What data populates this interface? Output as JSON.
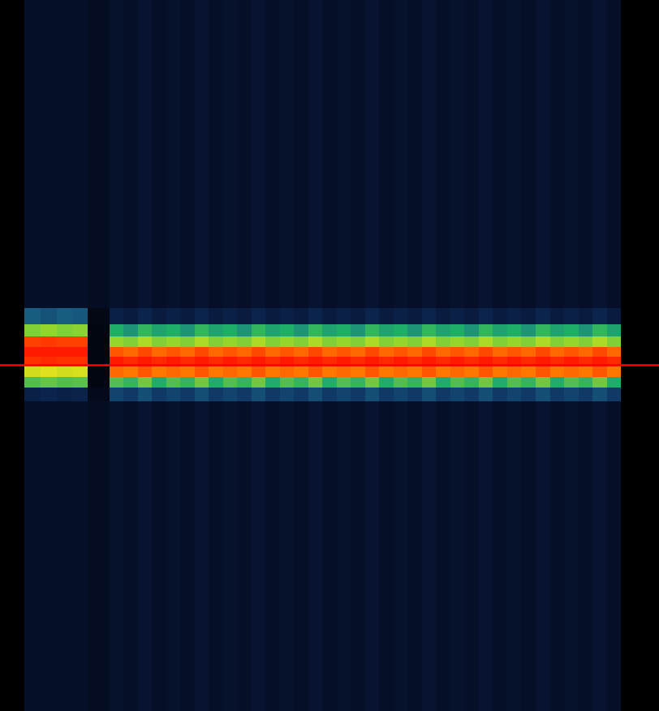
{
  "chart_data": {
    "type": "heatmap",
    "tick_labels": false,
    "xlim": [
      0,
      100
    ],
    "ylim": [
      0,
      100
    ],
    "zlim": [
      0,
      1
    ],
    "marker_line": 48.7,
    "time_bins": [
      3.7,
      6.2,
      8.6,
      11.0,
      13.3,
      16.6,
      18.76,
      20.91,
      23.07,
      25.22,
      27.38,
      29.54,
      31.69,
      33.85,
      36.0,
      38.16,
      40.32,
      42.47,
      44.63,
      46.78,
      48.94,
      51.1,
      53.25,
      55.41,
      57.56,
      59.72,
      61.88,
      64.03,
      66.19,
      68.34,
      70.5,
      72.66,
      74.81,
      76.97,
      79.12,
      81.28,
      83.44,
      85.59,
      87.75,
      89.9,
      92.06,
      94.2
    ],
    "freq_bins": [
      0,
      43.6,
      45.5,
      47.0,
      48.5,
      49.8,
      51.2,
      52.7,
      54.4,
      56.7,
      100
    ],
    "cells": [
      [
        0.12,
        0.2,
        0.55,
        0.7,
        0.97,
        1.0,
        0.95,
        0.6,
        0.35,
        0.12
      ],
      [
        0.12,
        0.22,
        0.57,
        0.72,
        0.98,
        1.0,
        0.96,
        0.62,
        0.33,
        0.12
      ],
      [
        0.12,
        0.2,
        0.55,
        0.7,
        0.97,
        1.0,
        0.95,
        0.6,
        0.35,
        0.12
      ],
      [
        0.12,
        0.21,
        0.56,
        0.71,
        0.97,
        1.0,
        0.95,
        0.61,
        0.34,
        0.12
      ],
      [
        0.1,
        0.08,
        0.05,
        0.05,
        0.05,
        0.05,
        0.05,
        0.05,
        0.06,
        0.1
      ],
      [
        0.13,
        0.3,
        0.55,
        0.9,
        1.0,
        0.92,
        0.62,
        0.5,
        0.2,
        0.13
      ],
      [
        0.12,
        0.28,
        0.52,
        0.88,
        0.98,
        0.9,
        0.6,
        0.45,
        0.18,
        0.12
      ],
      [
        0.14,
        0.32,
        0.58,
        0.92,
        1.0,
        0.94,
        0.65,
        0.52,
        0.22,
        0.14
      ],
      [
        0.12,
        0.28,
        0.5,
        0.88,
        0.98,
        0.9,
        0.6,
        0.48,
        0.18,
        0.12
      ],
      [
        0.13,
        0.3,
        0.55,
        0.9,
        1.0,
        0.92,
        0.62,
        0.5,
        0.2,
        0.13
      ],
      [
        0.12,
        0.28,
        0.52,
        0.88,
        0.98,
        0.9,
        0.6,
        0.45,
        0.18,
        0.12
      ],
      [
        0.14,
        0.32,
        0.58,
        0.92,
        1.0,
        0.94,
        0.65,
        0.52,
        0.22,
        0.14
      ],
      [
        0.12,
        0.28,
        0.5,
        0.88,
        0.98,
        0.9,
        0.6,
        0.48,
        0.18,
        0.12
      ],
      [
        0.13,
        0.3,
        0.55,
        0.9,
        1.0,
        0.92,
        0.62,
        0.5,
        0.2,
        0.13
      ],
      [
        0.12,
        0.28,
        0.52,
        0.88,
        0.98,
        0.9,
        0.6,
        0.45,
        0.18,
        0.12
      ],
      [
        0.14,
        0.32,
        0.58,
        0.92,
        1.0,
        0.94,
        0.65,
        0.52,
        0.22,
        0.14
      ],
      [
        0.12,
        0.28,
        0.5,
        0.88,
        0.98,
        0.9,
        0.6,
        0.48,
        0.18,
        0.12
      ],
      [
        0.13,
        0.3,
        0.55,
        0.9,
        1.0,
        0.92,
        0.62,
        0.5,
        0.2,
        0.13
      ],
      [
        0.12,
        0.28,
        0.52,
        0.88,
        0.98,
        0.9,
        0.6,
        0.45,
        0.18,
        0.12
      ],
      [
        0.14,
        0.32,
        0.58,
        0.92,
        1.0,
        0.94,
        0.65,
        0.52,
        0.22,
        0.14
      ],
      [
        0.12,
        0.28,
        0.5,
        0.88,
        0.98,
        0.9,
        0.6,
        0.48,
        0.18,
        0.12
      ],
      [
        0.13,
        0.3,
        0.55,
        0.9,
        1.0,
        0.92,
        0.62,
        0.5,
        0.2,
        0.13
      ],
      [
        0.12,
        0.28,
        0.52,
        0.88,
        0.98,
        0.9,
        0.6,
        0.45,
        0.18,
        0.12
      ],
      [
        0.14,
        0.32,
        0.58,
        0.92,
        1.0,
        0.94,
        0.65,
        0.52,
        0.22,
        0.14
      ],
      [
        0.12,
        0.28,
        0.5,
        0.88,
        0.98,
        0.9,
        0.6,
        0.48,
        0.18,
        0.12
      ],
      [
        0.13,
        0.3,
        0.55,
        0.9,
        1.0,
        0.92,
        0.62,
        0.5,
        0.2,
        0.13
      ],
      [
        0.12,
        0.28,
        0.52,
        0.88,
        0.98,
        0.9,
        0.6,
        0.45,
        0.18,
        0.12
      ],
      [
        0.14,
        0.32,
        0.58,
        0.92,
        1.0,
        0.94,
        0.65,
        0.52,
        0.22,
        0.14
      ],
      [
        0.12,
        0.28,
        0.5,
        0.88,
        0.98,
        0.9,
        0.6,
        0.48,
        0.18,
        0.12
      ],
      [
        0.13,
        0.3,
        0.55,
        0.9,
        1.0,
        0.92,
        0.62,
        0.5,
        0.2,
        0.13
      ],
      [
        0.12,
        0.28,
        0.52,
        0.88,
        0.98,
        0.9,
        0.6,
        0.45,
        0.18,
        0.12
      ],
      [
        0.14,
        0.32,
        0.58,
        0.92,
        1.0,
        0.94,
        0.65,
        0.52,
        0.22,
        0.14
      ],
      [
        0.12,
        0.28,
        0.5,
        0.88,
        0.98,
        0.9,
        0.6,
        0.48,
        0.18,
        0.12
      ],
      [
        0.13,
        0.3,
        0.55,
        0.9,
        1.0,
        0.92,
        0.62,
        0.5,
        0.2,
        0.13
      ],
      [
        0.12,
        0.28,
        0.52,
        0.88,
        0.98,
        0.9,
        0.6,
        0.45,
        0.18,
        0.12
      ],
      [
        0.14,
        0.32,
        0.58,
        0.92,
        1.0,
        0.94,
        0.65,
        0.52,
        0.22,
        0.14
      ],
      [
        0.12,
        0.28,
        0.5,
        0.88,
        0.98,
        0.9,
        0.6,
        0.48,
        0.18,
        0.12
      ],
      [
        0.13,
        0.3,
        0.55,
        0.9,
        1.0,
        0.92,
        0.62,
        0.5,
        0.2,
        0.13
      ],
      [
        0.12,
        0.28,
        0.52,
        0.88,
        0.98,
        0.9,
        0.6,
        0.45,
        0.18,
        0.12
      ],
      [
        0.14,
        0.32,
        0.58,
        0.92,
        1.0,
        0.94,
        0.65,
        0.52,
        0.22,
        0.14
      ],
      [
        0.12,
        0.28,
        0.5,
        0.88,
        0.98,
        0.9,
        0.6,
        0.48,
        0.18,
        0.12
      ]
    ]
  }
}
